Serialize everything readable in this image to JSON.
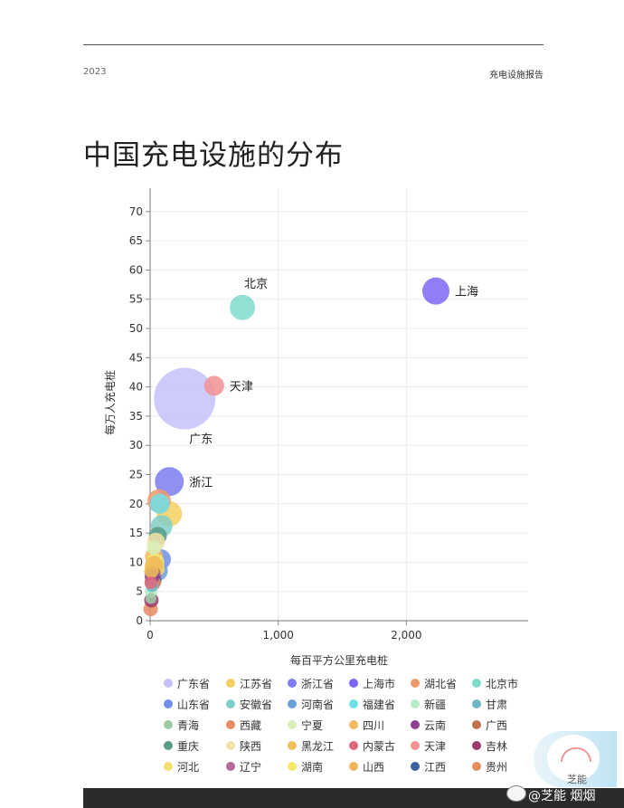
{
  "header": {
    "year": "2023",
    "report": "充电设施报告",
    "title": "中国充电设施的分布"
  },
  "watermark": {
    "brand": "芝能",
    "handle": "@芝能 烟烟"
  },
  "chart_data": {
    "type": "scatter",
    "title": "中国充电设施的分布",
    "xlabel": "每百平方公里充电桩",
    "ylabel": "每万人充电桩",
    "xlim": [
      0,
      2950
    ],
    "ylim": [
      0,
      74
    ],
    "xticks": [
      {
        "v": 0,
        "label": "0"
      },
      {
        "v": 1000,
        "label": "1,000"
      },
      {
        "v": 2000,
        "label": "2,000"
      }
    ],
    "yticks": [
      0,
      5,
      10,
      15,
      20,
      25,
      30,
      35,
      40,
      45,
      50,
      55,
      60,
      65,
      70
    ],
    "grid": true,
    "legend_placement": "bottom",
    "series": [
      {
        "name": "广东省",
        "x": 270,
        "y": 38,
        "r": 34,
        "color": "#c5c2fb",
        "label": "广东",
        "label_pos": "below"
      },
      {
        "name": "江苏省",
        "x": 150,
        "y": 18.3,
        "r": 14,
        "color": "#f3cf62"
      },
      {
        "name": "浙江省",
        "x": 150,
        "y": 23.8,
        "r": 16,
        "color": "#7d7cf0",
        "label": "浙江",
        "label_pos": "right"
      },
      {
        "name": "上海市",
        "x": 2230,
        "y": 56.4,
        "r": 15,
        "color": "#7e67f5",
        "label": "上海",
        "label_pos": "right"
      },
      {
        "name": "湖北省",
        "x": 70,
        "y": 20.5,
        "r": 13,
        "color": "#ee9a6d"
      },
      {
        "name": "北京市",
        "x": 720,
        "y": 53.6,
        "r": 14,
        "color": "#7fdccc",
        "label": "北京",
        "label_pos": "above"
      },
      {
        "name": "山东省",
        "x": 85,
        "y": 10.5,
        "r": 11,
        "color": "#6f8fea"
      },
      {
        "name": "安徽省",
        "x": 90,
        "y": 16.2,
        "r": 12,
        "color": "#80cfc8"
      },
      {
        "name": "河南省",
        "x": 60,
        "y": 8.5,
        "r": 11,
        "color": "#6a9fd8"
      },
      {
        "name": "福建省",
        "x": 75,
        "y": 20,
        "r": 11,
        "color": "#6fdfe8"
      },
      {
        "name": "新疆",
        "x": 8,
        "y": 5,
        "r": 7,
        "color": "#b7ecc9"
      },
      {
        "name": "甘肃",
        "x": 15,
        "y": 6,
        "r": 7,
        "color": "#6fb6c4"
      },
      {
        "name": "青海",
        "x": 6,
        "y": 3.8,
        "r": 6,
        "color": "#9ccaa4"
      },
      {
        "name": "西藏",
        "x": 4,
        "y": 2,
        "r": 8,
        "color": "#e98b63"
      },
      {
        "name": "宁夏",
        "x": 30,
        "y": 12.5,
        "r": 8,
        "color": "#d6f0b8"
      },
      {
        "name": "四川",
        "x": 30,
        "y": 11,
        "r": 10,
        "color": "#f2b95e"
      },
      {
        "name": "云南",
        "x": 15,
        "y": 7.5,
        "r": 8,
        "color": "#8e3f8e"
      },
      {
        "name": "广西",
        "x": 20,
        "y": 8,
        "r": 9,
        "color": "#c0704b"
      },
      {
        "name": "重庆",
        "x": 60,
        "y": 14.5,
        "r": 10,
        "color": "#5a9c8a"
      },
      {
        "name": "陕西",
        "x": 45,
        "y": 13.5,
        "r": 10,
        "color": "#f3e0a8"
      },
      {
        "name": "黑龙江",
        "x": 10,
        "y": 8.5,
        "r": 8,
        "color": "#f0c15b"
      },
      {
        "name": "内蒙古",
        "x": 6,
        "y": 6.5,
        "r": 7,
        "color": "#e0677d"
      },
      {
        "name": "天津",
        "x": 500,
        "y": 40.2,
        "r": 11,
        "color": "#f29191",
        "label": "天津",
        "label_pos": "right"
      },
      {
        "name": "吉林",
        "x": 10,
        "y": 3.5,
        "r": 8,
        "color": "#9b3a6a"
      },
      {
        "name": "河北",
        "x": 35,
        "y": 9,
        "r": 11,
        "color": "#f2df6e"
      },
      {
        "name": "辽宁",
        "x": 25,
        "y": 7.5,
        "r": 9,
        "color": "#b46a9a"
      },
      {
        "name": "湖南",
        "x": 40,
        "y": 10,
        "r": 10,
        "color": "#f5e86a"
      },
      {
        "name": "山西",
        "x": 30,
        "y": 9.5,
        "r": 10,
        "color": "#f0b75a"
      },
      {
        "name": "江西",
        "x": 25,
        "y": 6.8,
        "r": 9,
        "color": "#3e5f9f"
      },
      {
        "name": "贵州",
        "x": 20,
        "y": 6.5,
        "r": 9,
        "color": "#e38c5d"
      }
    ]
  }
}
